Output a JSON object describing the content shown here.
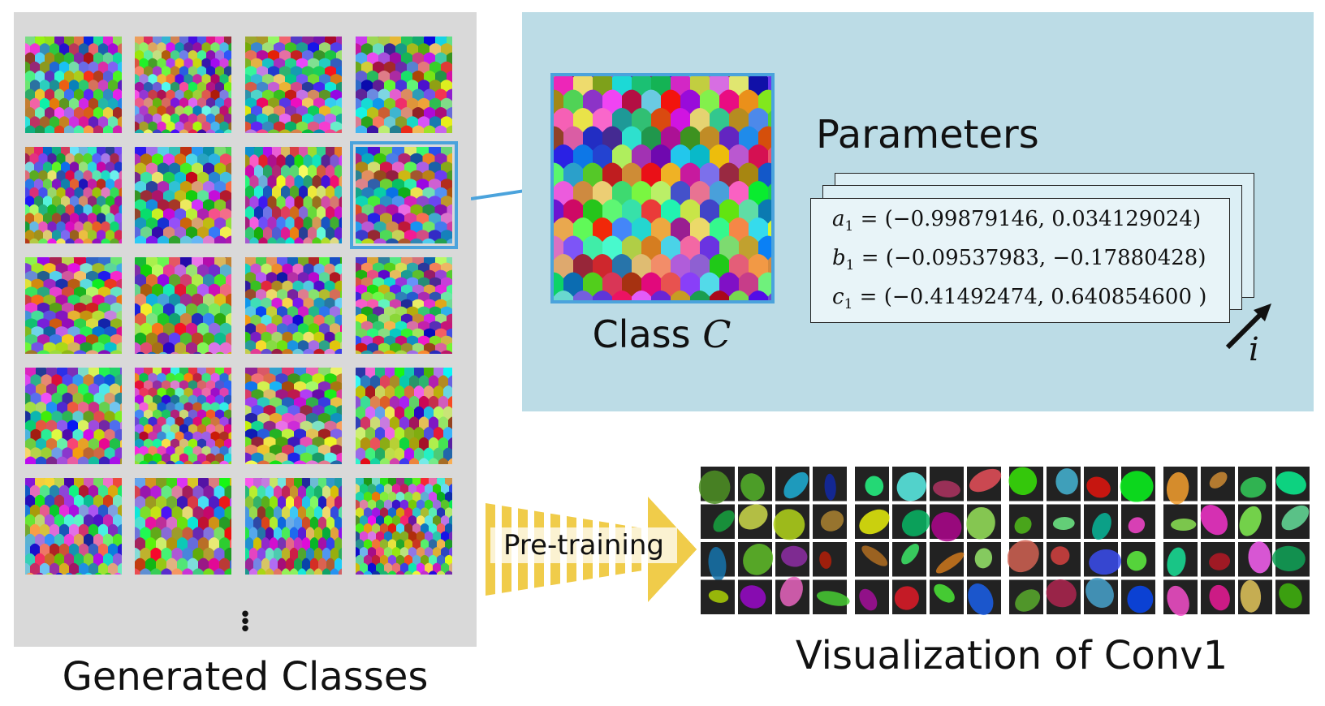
{
  "captions": {
    "generated_classes": "Generated Classes",
    "visualization": "Visualization of Conv1"
  },
  "class_label": {
    "prefix": "Class",
    "variable": "C"
  },
  "parameters": {
    "title": "Parameters",
    "rows": [
      {
        "symbol": "a",
        "subscript": "1",
        "value": "= (−0.99879146, 0.034129024)"
      },
      {
        "symbol": "b",
        "subscript": "1",
        "value": "= (−0.09537983, −0.17880428)"
      },
      {
        "symbol": "c",
        "subscript": "1",
        "value": "= (−0.41492474, 0.640854600 )"
      }
    ],
    "iteration_symbol": "i"
  },
  "pretraining_label": "Pre-training",
  "colors": {
    "grid_background": "#d9d9d9",
    "parameter_panel": "#bcdce6",
    "highlight_border": "#4ba3dc",
    "arrow_stripe": "#f0cc4a"
  },
  "icons": {
    "more": "vertical-ellipsis-icon",
    "iteration": "diagonal-arrow-icon"
  }
}
